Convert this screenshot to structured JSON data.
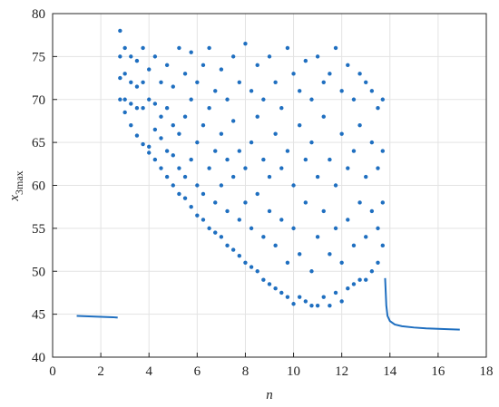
{
  "chart_data": {
    "type": "scatter",
    "x_label": "n",
    "y_label": "x",
    "y_label_subscript": "3max",
    "xlim": [
      0,
      18
    ],
    "xticks": [
      0,
      2,
      4,
      6,
      8,
      10,
      12,
      14,
      16,
      18
    ],
    "ylim": [
      40,
      80
    ],
    "yticks": [
      40,
      45,
      50,
      55,
      60,
      65,
      70,
      75,
      80
    ],
    "grid": true,
    "box": true,
    "series": [
      {
        "mode": "markers",
        "color": "#1f6fc0",
        "x": [
          2.8,
          2.8,
          2.8,
          2.8,
          3.0,
          3.0,
          3.0,
          3.0,
          3.25,
          3.25,
          3.25,
          3.25,
          3.5,
          3.5,
          3.5,
          3.5,
          3.75,
          3.75,
          3.75,
          3.75,
          4.0,
          4.0,
          4.0,
          4.0,
          4.25,
          4.25,
          4.25,
          4.25,
          4.5,
          4.5,
          4.5,
          4.5,
          4.75,
          4.75,
          4.75,
          4.75,
          5.0,
          5.0,
          5.0,
          5.0,
          5.25,
          5.25,
          5.25,
          5.25,
          5.5,
          5.5,
          5.5,
          5.5,
          5.75,
          5.75,
          5.75,
          5.75,
          6.0,
          6.0,
          6.0,
          6.0,
          6.25,
          6.25,
          6.25,
          6.25,
          6.5,
          6.5,
          6.5,
          6.5,
          6.75,
          6.75,
          6.75,
          6.75,
          7.0,
          7.0,
          7.0,
          7.0,
          7.25,
          7.25,
          7.25,
          7.25,
          7.5,
          7.5,
          7.5,
          7.5,
          7.75,
          7.75,
          7.75,
          7.75,
          8.0,
          8.0,
          8.0,
          8.0,
          8.25,
          8.25,
          8.25,
          8.25,
          8.5,
          8.5,
          8.5,
          8.5,
          8.75,
          8.75,
          8.75,
          8.75,
          9.0,
          9.0,
          9.0,
          9.0,
          9.25,
          9.25,
          9.25,
          9.25,
          9.5,
          9.5,
          9.5,
          9.5,
          9.75,
          9.75,
          9.75,
          9.75,
          10.0,
          10.0,
          10.0,
          10.0,
          10.25,
          10.25,
          10.25,
          10.25,
          10.5,
          10.5,
          10.5,
          10.5,
          10.75,
          10.75,
          10.75,
          10.75,
          11.0,
          11.0,
          11.0,
          11.0,
          11.25,
          11.25,
          11.25,
          11.25,
          11.5,
          11.5,
          11.5,
          11.5,
          11.75,
          11.75,
          11.75,
          11.75,
          12.0,
          12.0,
          12.0,
          12.0,
          12.25,
          12.25,
          12.25,
          12.25,
          12.5,
          12.5,
          12.5,
          12.5,
          12.75,
          12.75,
          12.75,
          12.75,
          13.0,
          13.0,
          13.0,
          13.0,
          13.25,
          13.25,
          13.25,
          13.25,
          13.5,
          13.5,
          13.5,
          13.5,
          13.7,
          13.7,
          13.7,
          13.7
        ],
        "values": [
          70,
          72.5,
          75,
          78,
          68.5,
          70,
          73,
          76,
          67,
          69.5,
          72,
          75,
          65.8,
          69,
          71.5,
          74.5,
          64.8,
          69,
          72,
          76,
          63.8,
          64.5,
          70,
          73.5,
          63,
          66.5,
          69.5,
          75,
          62,
          65.5,
          68,
          72,
          61,
          64,
          69,
          74,
          60,
          63.5,
          67,
          71.5,
          59,
          62,
          66,
          76,
          58.5,
          61,
          68,
          73,
          57.5,
          63,
          70,
          75.5,
          56.5,
          60,
          65,
          72,
          56,
          59,
          67,
          74,
          55,
          62,
          69,
          76,
          54.5,
          58,
          64,
          71,
          54,
          60,
          66,
          73.5,
          53,
          57,
          63,
          70,
          52.5,
          61,
          67.5,
          75,
          51.8,
          56,
          64,
          72,
          51,
          58,
          62,
          76.5,
          50.5,
          55,
          65,
          71,
          50,
          59,
          68,
          74,
          49,
          54,
          63,
          70,
          48.5,
          57,
          61,
          75,
          48,
          53,
          66,
          72,
          47.5,
          56,
          62,
          69,
          47,
          51,
          64,
          76,
          46.2,
          55,
          60,
          73,
          47,
          52,
          67,
          71,
          46.5,
          58,
          63,
          74.5,
          46,
          50,
          65,
          70,
          46,
          54,
          61,
          75,
          47,
          57,
          68,
          72,
          46,
          52,
          63,
          73,
          47.5,
          55,
          60,
          76,
          46.5,
          51,
          66,
          71,
          48,
          56,
          62,
          74,
          48.5,
          53,
          64,
          70,
          49,
          58,
          67,
          73,
          49,
          54,
          61,
          72,
          50,
          57,
          65,
          71,
          51,
          55,
          62,
          69,
          53,
          58,
          64,
          70
        ]
      },
      {
        "mode": "lines",
        "color": "#1f6fc0",
        "x": [
          1.0,
          1.5,
          2.0,
          2.5,
          2.7
        ],
        "values": [
          44.8,
          44.75,
          44.7,
          44.65,
          44.6
        ]
      },
      {
        "mode": "lines",
        "color": "#1f6fc0",
        "x": [
          13.8,
          13.85,
          13.9,
          14.0,
          14.2,
          14.5,
          15,
          15.5,
          16,
          16.5,
          16.9
        ],
        "values": [
          49.2,
          46,
          44.8,
          44.2,
          43.8,
          43.6,
          43.45,
          43.35,
          43.3,
          43.25,
          43.2
        ]
      }
    ]
  }
}
